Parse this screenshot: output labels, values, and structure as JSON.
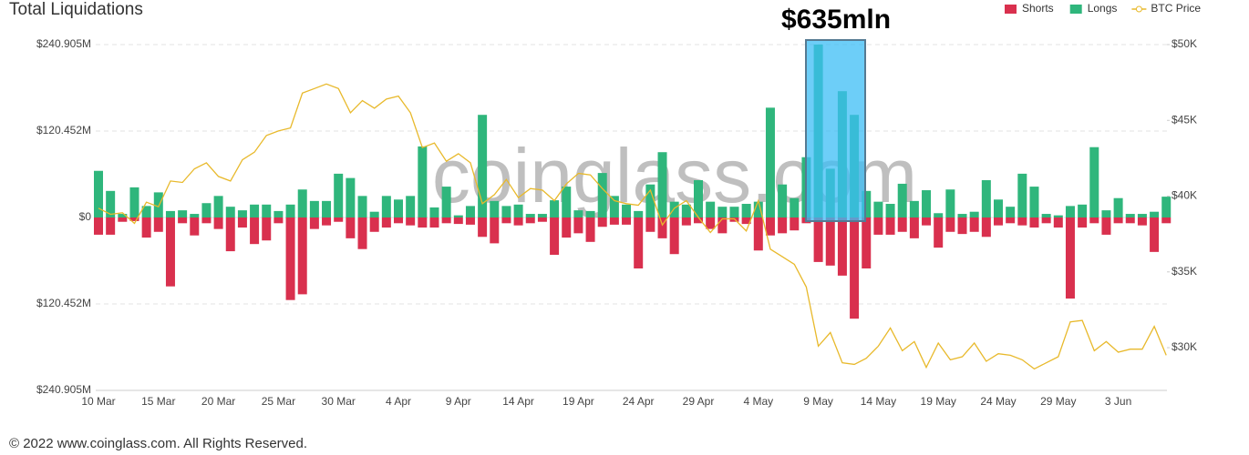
{
  "chart_data": {
    "type": "bar",
    "title": "Total Liquidations",
    "annotation": "$635mln",
    "watermark": "coinglass.com",
    "footer": "© 2022 www.coinglass.com. All Rights Reserved.",
    "grid": true,
    "legend": "top-right",
    "categories": [
      "10 Mar",
      null,
      null,
      null,
      null,
      "15 Mar",
      null,
      null,
      null,
      null,
      "20 Mar",
      null,
      null,
      null,
      null,
      "25 Mar",
      null,
      null,
      null,
      null,
      "30 Mar",
      null,
      null,
      null,
      null,
      "4 Apr",
      null,
      null,
      null,
      null,
      "9 Apr",
      null,
      null,
      null,
      null,
      "14 Apr",
      null,
      null,
      null,
      null,
      "19 Apr",
      null,
      null,
      null,
      null,
      "24 Apr",
      null,
      null,
      null,
      null,
      "29 Apr",
      null,
      null,
      null,
      null,
      "4 May",
      null,
      null,
      null,
      null,
      "9 May",
      null,
      null,
      null,
      null,
      "14 May",
      null,
      null,
      null,
      null,
      "19 May",
      null,
      null,
      null,
      null,
      "24 May",
      null,
      null,
      null,
      null,
      "29 May",
      null,
      null,
      null,
      null,
      "3 Jun",
      null,
      null,
      null,
      null
    ],
    "ylim": [
      -240.905,
      240.905
    ],
    "yticks": [
      {
        "value": 240.905,
        "label": "$240.905M"
      },
      {
        "value": 120.452,
        "label": "$120.452M"
      },
      {
        "value": 0,
        "label": "$0"
      },
      {
        "value": -120.452,
        "label": "$120.452M"
      },
      {
        "value": -240.905,
        "label": "$240.905M"
      }
    ],
    "y2lim": [
      27180,
      50000
    ],
    "y2ticks": [
      {
        "value": 50000,
        "label": "$50K"
      },
      {
        "value": 45000,
        "label": "$45K"
      },
      {
        "value": 40000,
        "label": "$40K"
      },
      {
        "value": 35000,
        "label": "$35K"
      },
      {
        "value": 30000,
        "label": "$30K"
      }
    ],
    "series": [
      {
        "name": "Shorts",
        "color": "#d9304e",
        "values": [
          -24,
          -24,
          -6,
          -5,
          -28,
          -20,
          -96,
          -8,
          -25,
          -8,
          -16,
          -47,
          -14,
          -37,
          -32,
          -8,
          -115,
          -107,
          -16,
          -11,
          -6,
          -29,
          -44,
          -20,
          -14,
          -8,
          -11,
          -14,
          -14,
          -8,
          -9,
          -10,
          -27,
          -36,
          -8,
          -11,
          -8,
          -6,
          -52,
          -28,
          -22,
          -34,
          -13,
          -10,
          -10,
          -71,
          -20,
          -29,
          -51,
          -11,
          -8,
          -16,
          -22,
          -6,
          -9,
          -46,
          -25,
          -22,
          -18,
          -8,
          -62,
          -67,
          -81,
          -141,
          -71,
          -24,
          -24,
          -20,
          -29,
          -11,
          -42,
          -20,
          -23,
          -20,
          -27,
          -11,
          -8,
          -11,
          -14,
          -8,
          -14,
          -113,
          -14,
          -8,
          -24,
          -8,
          -8,
          -11,
          -48,
          -8
        ]
      },
      {
        "name": "Longs",
        "color": "#2fb67c",
        "values": [
          65,
          37,
          5,
          42,
          16,
          35,
          9,
          10,
          5,
          20,
          30,
          15,
          10,
          18,
          18,
          9,
          18,
          39,
          23,
          23,
          61,
          55,
          30,
          8,
          30,
          25,
          30,
          99,
          14,
          43,
          3,
          16,
          143,
          23,
          16,
          18,
          5,
          5,
          24,
          43,
          10,
          9,
          62,
          30,
          18,
          9,
          46,
          91,
          22,
          18,
          52,
          22,
          15,
          15,
          19,
          22,
          153,
          46,
          27,
          84,
          241,
          68,
          176,
          143,
          37,
          22,
          19,
          47,
          23,
          38,
          6,
          39,
          5,
          8,
          52,
          25,
          15,
          61,
          43,
          5,
          3,
          16,
          18,
          98,
          10,
          27,
          5,
          5,
          8,
          29
        ]
      },
      {
        "name": "BTC Price",
        "color": "#e8b92b",
        "type": "line",
        "axis": "y2",
        "values": [
          39200,
          38800,
          38900,
          38200,
          39600,
          39300,
          41000,
          40900,
          41800,
          42200,
          41300,
          41000,
          42400,
          42900,
          44000,
          44300,
          44500,
          46800,
          47100,
          47400,
          47100,
          45500,
          46300,
          45800,
          46400,
          46600,
          45500,
          43200,
          43500,
          42300,
          42800,
          42200,
          39500,
          40100,
          41100,
          39900,
          40500,
          40400,
          39700,
          40800,
          41500,
          41400,
          40500,
          39700,
          39500,
          39400,
          40400,
          38100,
          39200,
          39700,
          38600,
          37600,
          38500,
          38500,
          37700,
          39700,
          36500,
          36000,
          35500,
          34000,
          30100,
          31000,
          29000,
          28900,
          29300,
          30100,
          31300,
          29800,
          30400,
          28700,
          30300,
          29200,
          29400,
          30300,
          29100,
          29600,
          29500,
          29200,
          28600,
          29000,
          29400,
          31700,
          31800,
          29800,
          30400,
          29700,
          29900,
          29900,
          31400,
          29500
        ]
      }
    ]
  }
}
